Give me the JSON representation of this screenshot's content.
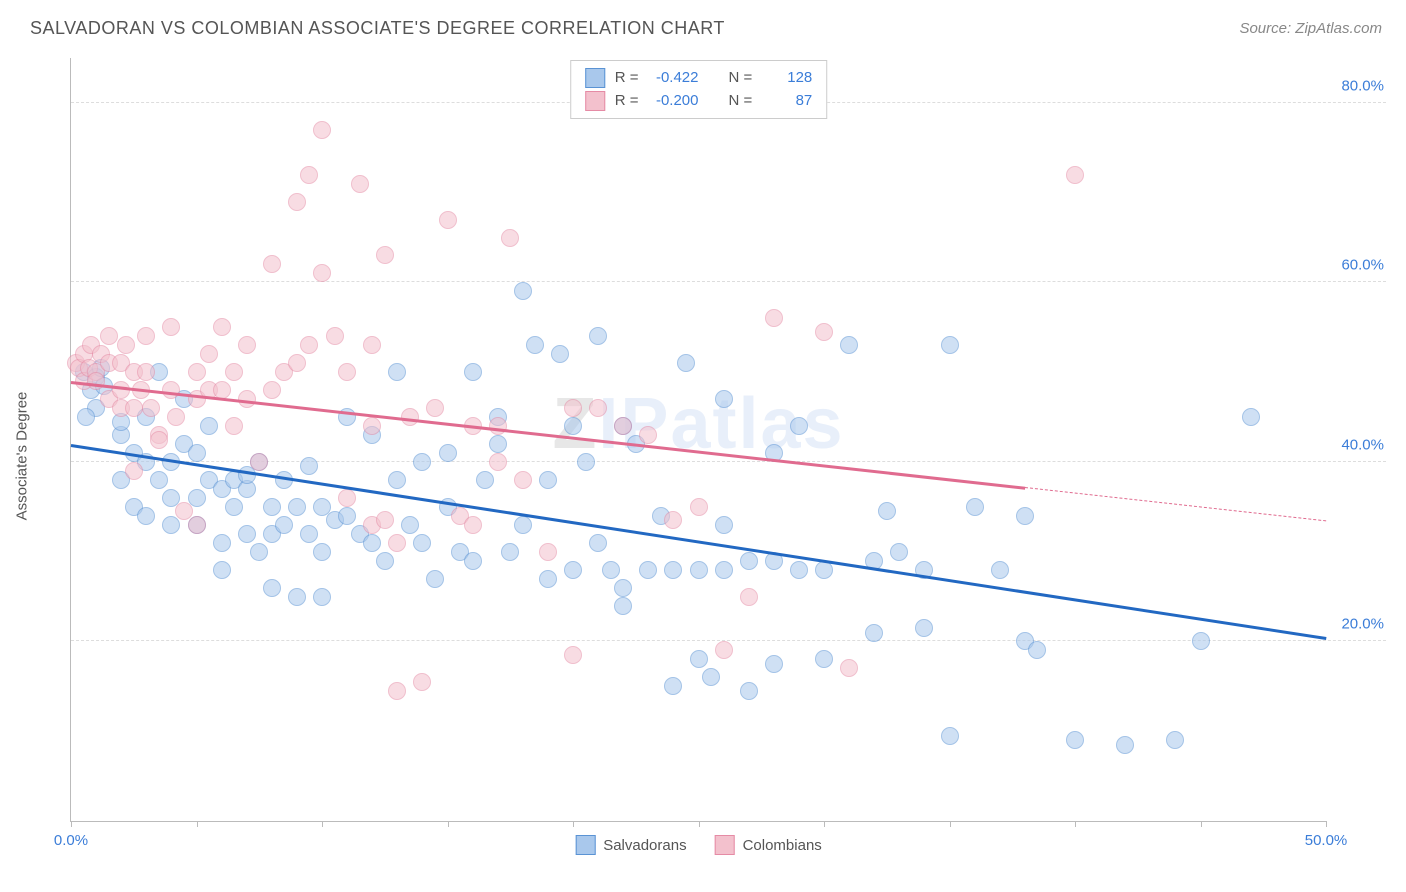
{
  "title": "SALVADORAN VS COLOMBIAN ASSOCIATE'S DEGREE CORRELATION CHART",
  "source": "Source: ZipAtlas.com",
  "ylabel": "Associate's Degree",
  "watermark_prefix": "Z",
  "watermark_suffix": "IPatlas",
  "chart": {
    "type": "scatter",
    "background_color": "#ffffff",
    "grid_color": "#dddddd",
    "axis_color": "#bbbbbb",
    "label_color": "#555555",
    "tick_label_color": "#3b7dd8",
    "xlim": [
      0,
      50
    ],
    "ylim": [
      0,
      85
    ],
    "x_ticks": [
      0,
      5,
      10,
      15,
      20,
      25,
      30,
      35,
      40,
      45,
      50
    ],
    "x_tick_labels": {
      "0": "0.0%",
      "50": "50.0%"
    },
    "y_gridlines": [
      20,
      40,
      60,
      80
    ],
    "y_tick_labels": {
      "20": "20.0%",
      "40": "40.0%",
      "60": "60.0%",
      "80": "80.0%"
    },
    "point_radius": 9,
    "point_opacity": 0.55,
    "series": [
      {
        "name": "Salvadorans",
        "fill_color": "#a9c8ec",
        "stroke_color": "#5a93d4",
        "trend_color": "#2268c2",
        "trend_width": 3,
        "R": "-0.422",
        "N": "128",
        "trend": {
          "x1": 0,
          "y1": 42,
          "x2": 50,
          "y2": 20.5,
          "solid_until_x": 50
        },
        "points": [
          [
            0.5,
            50
          ],
          [
            0.8,
            48
          ],
          [
            1,
            46
          ],
          [
            1,
            49.5
          ],
          [
            1.2,
            50.5
          ],
          [
            1.3,
            48.5
          ],
          [
            0.6,
            45
          ],
          [
            2,
            43
          ],
          [
            2,
            44.5
          ],
          [
            2,
            38
          ],
          [
            2.5,
            41
          ],
          [
            2.5,
            35
          ],
          [
            3,
            40
          ],
          [
            3,
            34
          ],
          [
            3,
            45
          ],
          [
            3.5,
            50
          ],
          [
            3.5,
            38
          ],
          [
            4,
            33
          ],
          [
            4,
            36
          ],
          [
            4,
            40
          ],
          [
            4.5,
            42
          ],
          [
            4.5,
            47
          ],
          [
            5,
            36
          ],
          [
            5,
            33
          ],
          [
            5,
            41
          ],
          [
            5.5,
            38
          ],
          [
            5.5,
            44
          ],
          [
            6,
            31
          ],
          [
            6,
            37
          ],
          [
            6,
            28
          ],
          [
            6.5,
            38
          ],
          [
            6.5,
            35
          ],
          [
            7,
            37
          ],
          [
            7,
            32
          ],
          [
            7,
            38.5
          ],
          [
            7.5,
            30
          ],
          [
            7.5,
            40
          ],
          [
            8,
            32
          ],
          [
            8,
            35
          ],
          [
            8,
            26
          ],
          [
            8.5,
            33
          ],
          [
            8.5,
            38
          ],
          [
            9,
            25
          ],
          [
            9,
            35
          ],
          [
            9.5,
            32
          ],
          [
            9.5,
            39.5
          ],
          [
            10,
            25
          ],
          [
            10,
            35
          ],
          [
            10,
            30
          ],
          [
            10.5,
            33.5
          ],
          [
            11,
            45
          ],
          [
            11,
            34
          ],
          [
            11.5,
            32
          ],
          [
            12,
            43
          ],
          [
            12,
            31
          ],
          [
            12.5,
            29
          ],
          [
            13,
            38
          ],
          [
            13,
            50
          ],
          [
            13.5,
            33
          ],
          [
            14,
            40
          ],
          [
            14,
            31
          ],
          [
            14.5,
            27
          ],
          [
            15,
            35
          ],
          [
            15,
            41
          ],
          [
            15.5,
            30
          ],
          [
            16,
            29
          ],
          [
            16,
            50
          ],
          [
            16.5,
            38
          ],
          [
            17,
            42
          ],
          [
            17,
            45
          ],
          [
            17.5,
            30
          ],
          [
            18,
            33
          ],
          [
            18,
            59
          ],
          [
            18.5,
            53
          ],
          [
            19,
            27
          ],
          [
            19,
            38
          ],
          [
            19.5,
            52
          ],
          [
            20,
            44
          ],
          [
            20,
            28
          ],
          [
            20.5,
            40
          ],
          [
            21,
            31
          ],
          [
            21,
            54
          ],
          [
            21.5,
            28
          ],
          [
            22,
            24
          ],
          [
            22,
            26
          ],
          [
            22,
            44
          ],
          [
            22.5,
            42
          ],
          [
            23,
            28
          ],
          [
            23.5,
            34
          ],
          [
            24,
            15
          ],
          [
            24,
            28
          ],
          [
            24.5,
            51
          ],
          [
            25,
            28
          ],
          [
            25,
            18
          ],
          [
            25.5,
            16
          ],
          [
            26,
            28
          ],
          [
            26,
            33
          ],
          [
            26,
            47
          ],
          [
            27,
            29
          ],
          [
            27,
            14.5
          ],
          [
            28,
            17.5
          ],
          [
            28,
            29
          ],
          [
            28,
            41
          ],
          [
            29,
            28
          ],
          [
            29,
            44
          ],
          [
            30,
            18
          ],
          [
            30,
            28
          ],
          [
            31,
            53
          ],
          [
            32,
            21
          ],
          [
            32,
            29
          ],
          [
            32.5,
            34.5
          ],
          [
            33,
            30
          ],
          [
            34,
            21.5
          ],
          [
            34,
            28
          ],
          [
            35,
            53
          ],
          [
            36,
            35
          ],
          [
            37,
            28
          ],
          [
            38,
            20
          ],
          [
            38,
            34
          ],
          [
            38.5,
            19
          ],
          [
            40,
            9
          ],
          [
            42,
            8.5
          ],
          [
            44,
            9
          ],
          [
            45,
            20
          ],
          [
            47,
            45
          ],
          [
            35,
            9.5
          ]
        ]
      },
      {
        "name": "Colombians",
        "fill_color": "#f3c1cd",
        "stroke_color": "#e58ba5",
        "trend_color": "#e06b8f",
        "trend_width": 2.5,
        "R": "-0.200",
        "N": "87",
        "trend": {
          "x1": 0,
          "y1": 49,
          "x2": 50,
          "y2": 33.5,
          "solid_until_x": 38
        },
        "points": [
          [
            0.2,
            51
          ],
          [
            0.3,
            50.5
          ],
          [
            0.5,
            52
          ],
          [
            0.5,
            49
          ],
          [
            0.7,
            50.5
          ],
          [
            0.8,
            53
          ],
          [
            1,
            50
          ],
          [
            1,
            49
          ],
          [
            1.2,
            52
          ],
          [
            1.5,
            51
          ],
          [
            1.5,
            47
          ],
          [
            1.5,
            54
          ],
          [
            2,
            51
          ],
          [
            2,
            48
          ],
          [
            2,
            46
          ],
          [
            2.2,
            53
          ],
          [
            2.5,
            39
          ],
          [
            2.5,
            50
          ],
          [
            2.5,
            46
          ],
          [
            2.8,
            48
          ],
          [
            3,
            50
          ],
          [
            3,
            54
          ],
          [
            3.2,
            46
          ],
          [
            3.5,
            43
          ],
          [
            3.5,
            42.5
          ],
          [
            4,
            55
          ],
          [
            4,
            48
          ],
          [
            4.2,
            45
          ],
          [
            4.5,
            34.5
          ],
          [
            5,
            33
          ],
          [
            5,
            50
          ],
          [
            5,
            47
          ],
          [
            5.5,
            48
          ],
          [
            5.5,
            52
          ],
          [
            6,
            48
          ],
          [
            6,
            55
          ],
          [
            6.5,
            50
          ],
          [
            6.5,
            44
          ],
          [
            7,
            47
          ],
          [
            7,
            53
          ],
          [
            7.5,
            40
          ],
          [
            8,
            62
          ],
          [
            8,
            48
          ],
          [
            8.5,
            50
          ],
          [
            9,
            51
          ],
          [
            9,
            69
          ],
          [
            9.5,
            53
          ],
          [
            9.5,
            72
          ],
          [
            10,
            77
          ],
          [
            10,
            61
          ],
          [
            10.5,
            54
          ],
          [
            11,
            50
          ],
          [
            11,
            36
          ],
          [
            11.5,
            71
          ],
          [
            12,
            53
          ],
          [
            12,
            33
          ],
          [
            12,
            44
          ],
          [
            12.5,
            33.5
          ],
          [
            12.5,
            63
          ],
          [
            13,
            14.5
          ],
          [
            13,
            31
          ],
          [
            13.5,
            45
          ],
          [
            14,
            15.5
          ],
          [
            14.5,
            46
          ],
          [
            15,
            67
          ],
          [
            15.5,
            34
          ],
          [
            16,
            44
          ],
          [
            16,
            33
          ],
          [
            17,
            44
          ],
          [
            17,
            40
          ],
          [
            17.5,
            65
          ],
          [
            18,
            38
          ],
          [
            19,
            30
          ],
          [
            20,
            46
          ],
          [
            20,
            18.5
          ],
          [
            21,
            46
          ],
          [
            22,
            44
          ],
          [
            23,
            43
          ],
          [
            24,
            33.5
          ],
          [
            25,
            35
          ],
          [
            26,
            19
          ],
          [
            27,
            25
          ],
          [
            28,
            56
          ],
          [
            30,
            54.5
          ],
          [
            31,
            17
          ],
          [
            40,
            72
          ]
        ]
      }
    ]
  },
  "legend": [
    {
      "label": "Salvadorans",
      "fill": "#a9c8ec",
      "stroke": "#5a93d4"
    },
    {
      "label": "Colombians",
      "fill": "#f3c1cd",
      "stroke": "#e58ba5"
    }
  ]
}
